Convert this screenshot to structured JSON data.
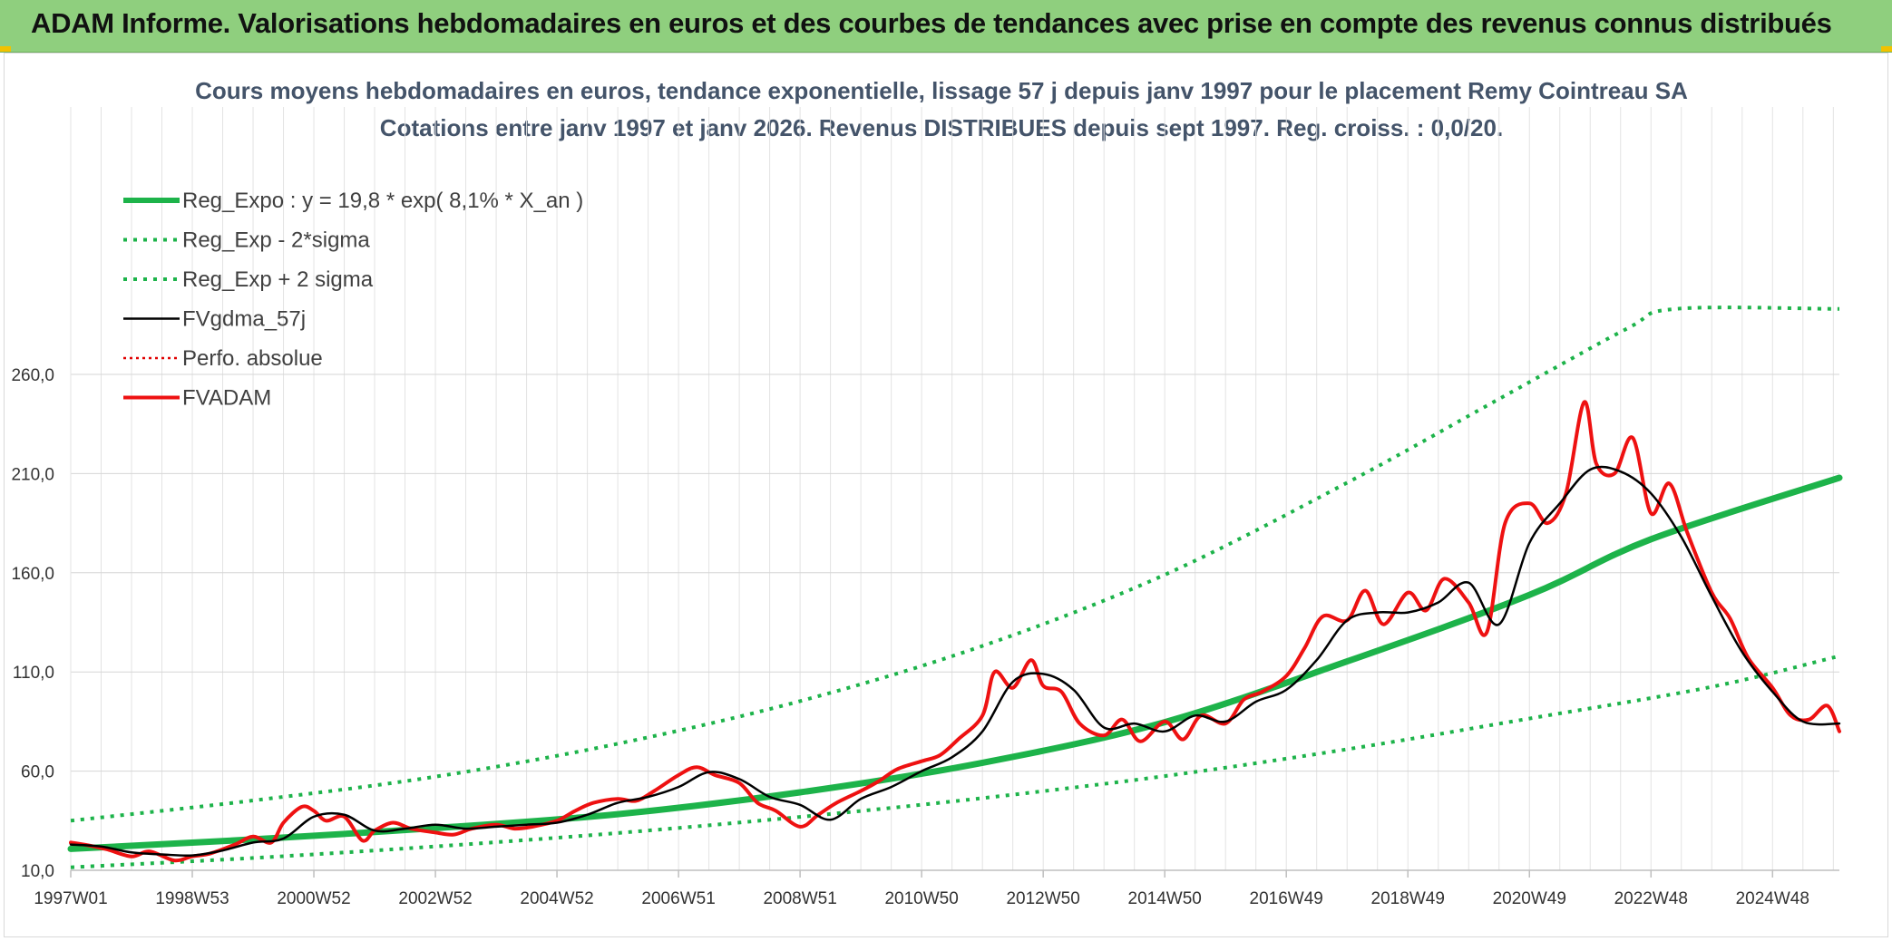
{
  "header": {
    "title": "ADAM Informe. Valorisations hebdomadaires en euros et des courbes de tendances avec prise en compte des revenus connus distribués"
  },
  "chart_data": {
    "type": "line",
    "title_line1": "Cours moyens hebdomadaires en euros, tendance exponentielle, lissage 57 j depuis janv 1997 pour le placement Remy Cointreau SA",
    "title_line2": "Cotations entre janv 1997 et janv 2026. Revenus DISTRIBUES depuis sept 1997. Reg. croiss. : 0,0/20.",
    "xlabel": "",
    "ylabel": "",
    "xlim": [
      1997.0,
      2026.1
    ],
    "ylim": [
      10,
      285
    ],
    "y_ticks": [
      "10,0",
      "60,0",
      "110,0",
      "160,0",
      "210,0",
      "260,0"
    ],
    "y_tick_values": [
      10,
      60,
      110,
      160,
      210,
      260
    ],
    "x_ticks": [
      "1997W01",
      "1998W53",
      "2000W52",
      "2002W52",
      "2004W52",
      "2006W51",
      "2008W51",
      "2010W50",
      "2012W50",
      "2014W50",
      "2016W49",
      "2018W49",
      "2020W49",
      "2022W48",
      "2024W48"
    ],
    "x_tick_values": [
      1997.0,
      1999.0,
      2001.0,
      2003.0,
      2005.0,
      2007.0,
      2009.0,
      2011.0,
      2013.0,
      2015.0,
      2017.0,
      2019.0,
      2021.0,
      2023.0,
      2025.0
    ],
    "grid": true,
    "legend_position": "top-left",
    "colors": {
      "reg_expo": "#1db34a",
      "sigma": "#1db34a",
      "fvgdma": "#000000",
      "perfo": "#e00000",
      "fvadam": "#ee1111"
    },
    "series": [
      {
        "name": "Reg_Expo : y = 19,8 * exp( 8,1% *  X_an )",
        "style": "solid-thick",
        "x": [
          1997.0,
          2000.0,
          2003.0,
          2006.0,
          2009.0,
          2012.0,
          2015.0,
          2018.0,
          2021.0,
          2023.0,
          2026.1
        ],
        "values": [
          20.8,
          25.6,
          31.3,
          38.3,
          49.3,
          64.2,
          84.7,
          115.3,
          148.8,
          176.9,
          207.9
        ]
      },
      {
        "name": "Reg_Exp - 2*sigma",
        "style": "dotted",
        "x": [
          1997.0,
          2000.0,
          2003.0,
          2006.0,
          2009.0,
          2012.0,
          2015.0,
          2018.0,
          2021.0,
          2024.0,
          2026.1
        ],
        "values": [
          11.5,
          16.2,
          22.0,
          28.8,
          36.9,
          46.4,
          57.5,
          71.0,
          86.5,
          102.5,
          118.0
        ]
      },
      {
        "name": "Reg_Exp + 2 sigma",
        "style": "dotted",
        "x": [
          1997.0,
          2000.0,
          2003.0,
          2006.0,
          2009.0,
          2012.0,
          2015.0,
          2018.0,
          2020.5,
          2022.6,
          2023.4,
          2026.1
        ],
        "values": [
          35.0,
          45.2,
          57.2,
          73.8,
          95.3,
          123.1,
          159.0,
          205.4,
          247.6,
          283.0,
          293.0,
          293.0
        ]
      },
      {
        "name": "FVgdma_57j",
        "style": "solid-thin",
        "x": [
          1997.0,
          1997.5,
          1998.0,
          1998.5,
          1999.0,
          1999.5,
          2000.0,
          2000.5,
          2001.0,
          2001.5,
          2002.0,
          2002.5,
          2003.0,
          2003.5,
          2004.0,
          2004.5,
          2005.0,
          2005.5,
          2006.0,
          2006.5,
          2007.0,
          2007.5,
          2008.0,
          2008.5,
          2009.0,
          2009.5,
          2010.0,
          2010.5,
          2011.0,
          2011.5,
          2012.0,
          2012.5,
          2013.0,
          2013.5,
          2014.0,
          2014.5,
          2015.0,
          2015.5,
          2016.0,
          2016.5,
          2017.0,
          2017.5,
          2018.0,
          2018.5,
          2019.0,
          2019.5,
          2020.0,
          2020.5,
          2021.0,
          2021.5,
          2022.0,
          2022.5,
          2023.0,
          2023.5,
          2024.0,
          2024.5,
          2025.0,
          2025.5,
          2026.1
        ],
        "values": [
          23.0,
          22.0,
          19.0,
          18.0,
          17.5,
          20.0,
          24.0,
          26.0,
          37.0,
          38.0,
          30.0,
          31.0,
          33.0,
          31.0,
          32.0,
          33.0,
          34.0,
          38.0,
          44.0,
          47.0,
          52.0,
          59.5,
          56.0,
          47.0,
          43.0,
          35.5,
          46.0,
          52.0,
          60.0,
          67.0,
          80.0,
          105.0,
          109.0,
          101.0,
          82.0,
          84.0,
          80.0,
          88.0,
          85.0,
          95.0,
          101.0,
          116.0,
          136.0,
          140.0,
          140.0,
          145.0,
          155.0,
          134.0,
          175.0,
          195.0,
          212.0,
          211.0,
          200.0,
          178.0,
          148.0,
          120.0,
          100.0,
          85.0,
          84.0
        ]
      },
      {
        "name": "Perfo. absolue",
        "style": "dotted-red",
        "x": [],
        "values": []
      },
      {
        "name": "FVADAM",
        "style": "solid-red",
        "x": [
          1997.0,
          1997.3,
          1997.6,
          1998.0,
          1998.3,
          1998.7,
          1999.0,
          1999.3,
          1999.7,
          2000.0,
          2000.3,
          2000.5,
          2000.8,
          2001.0,
          2001.2,
          2001.5,
          2001.8,
          2002.0,
          2002.3,
          2002.6,
          2003.0,
          2003.3,
          2003.6,
          2004.0,
          2004.3,
          2004.6,
          2005.0,
          2005.3,
          2005.6,
          2006.0,
          2006.3,
          2006.6,
          2007.0,
          2007.3,
          2007.6,
          2008.0,
          2008.3,
          2008.6,
          2009.0,
          2009.3,
          2009.6,
          2010.0,
          2010.3,
          2010.6,
          2011.0,
          2011.3,
          2011.6,
          2012.0,
          2012.2,
          2012.5,
          2012.8,
          2013.0,
          2013.3,
          2013.6,
          2014.0,
          2014.3,
          2014.6,
          2015.0,
          2015.3,
          2015.6,
          2016.0,
          2016.3,
          2016.6,
          2017.0,
          2017.3,
          2017.6,
          2018.0,
          2018.3,
          2018.6,
          2019.0,
          2019.3,
          2019.6,
          2020.0,
          2020.3,
          2020.6,
          2021.0,
          2021.3,
          2021.6,
          2021.9,
          2022.1,
          2022.4,
          2022.7,
          2023.0,
          2023.3,
          2023.6,
          2024.0,
          2024.3,
          2024.6,
          2025.0,
          2025.3,
          2025.6,
          2025.9,
          2026.1
        ],
        "values": [
          24.0,
          22.5,
          20.5,
          17.0,
          19.5,
          15.0,
          17.0,
          18.5,
          23.0,
          27.0,
          24.0,
          34.0,
          42.0,
          40.0,
          35.0,
          37.0,
          25.0,
          30.0,
          34.0,
          31.0,
          29.0,
          28.0,
          31.0,
          33.0,
          31.0,
          32.0,
          35.0,
          40.0,
          44.0,
          46.0,
          45.0,
          50.0,
          58.0,
          62.0,
          58.0,
          54.0,
          44.0,
          40.0,
          32.0,
          38.0,
          44.0,
          50.0,
          55.0,
          61.0,
          65.0,
          68.0,
          76.0,
          88.0,
          110.0,
          102.0,
          116.0,
          103.0,
          100.0,
          84.0,
          78.0,
          86.0,
          75.0,
          85.0,
          76.0,
          88.0,
          84.0,
          96.0,
          100.0,
          108.0,
          122.0,
          138.0,
          136.0,
          151.0,
          134.0,
          150.0,
          141.0,
          157.0,
          145.0,
          130.0,
          185.0,
          195.0,
          185.0,
          200.0,
          246.0,
          215.0,
          210.0,
          228.0,
          190.0,
          205.0,
          180.0,
          150.0,
          137.0,
          117.0,
          102.0,
          88.0,
          86.0,
          93.0,
          80.0
        ]
      }
    ]
  }
}
